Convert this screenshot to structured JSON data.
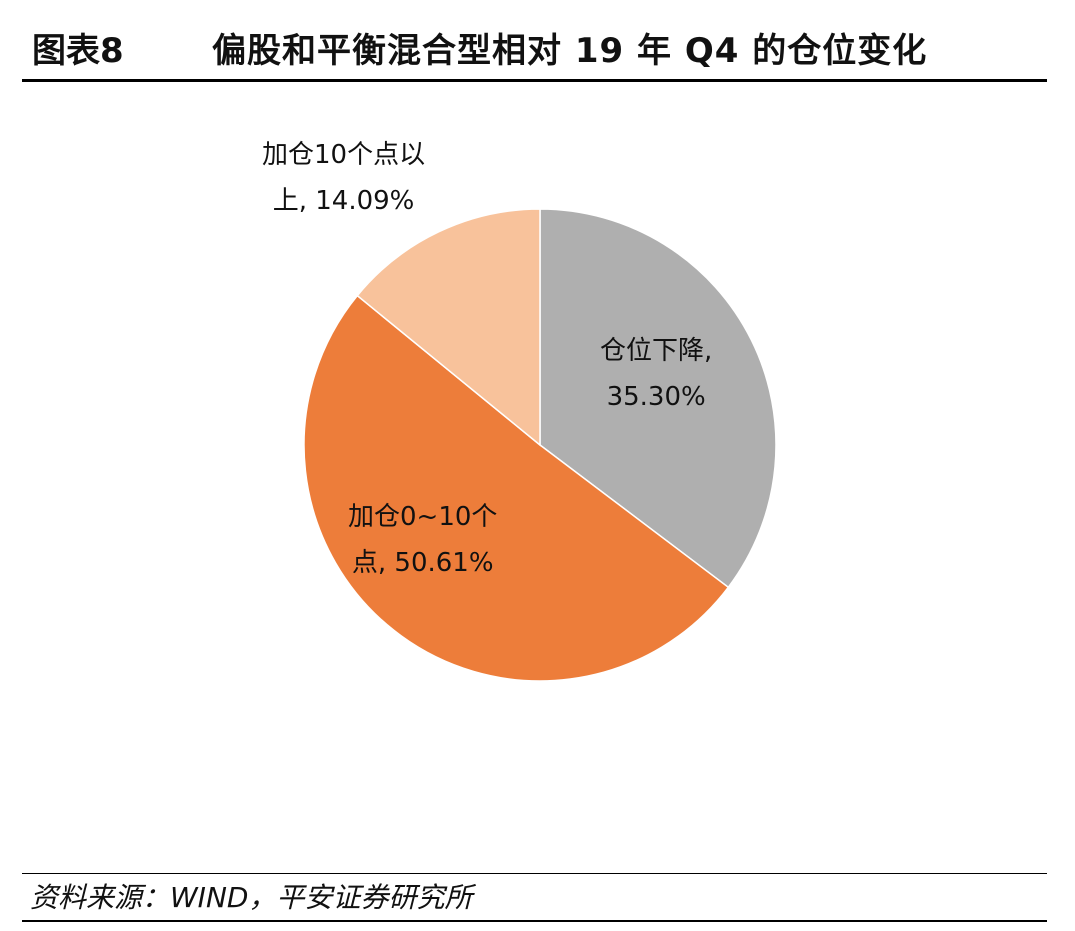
{
  "figure": {
    "label": "图表8",
    "title": "偏股和平衡混合型相对 19 年 Q4 的仓位变化"
  },
  "chart_data": {
    "type": "pie",
    "slices": [
      {
        "label_line1": "仓位下降,",
        "label_line2": "35.30%",
        "name": "仓位下降",
        "value": 35.3,
        "color": "#AFAFAF"
      },
      {
        "label_line1": "加仓0~10个",
        "label_line2": "点, 50.61%",
        "name": "加仓0~10个点",
        "value": 50.61,
        "color": "#ED7D3A"
      },
      {
        "label_line1": "加仓10个点以",
        "label_line2": "上, 14.09%",
        "name": "加仓10个点以上",
        "value": 14.09,
        "color": "#F8C29B"
      }
    ],
    "start_angle": "12 o'clock",
    "direction": "clockwise"
  },
  "source": "资料来源：WIND，平安证券研究所"
}
